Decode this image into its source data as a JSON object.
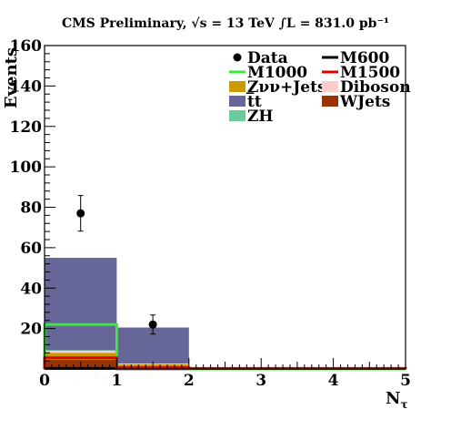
{
  "chart_data": {
    "type": "bar",
    "title": "CMS Preliminary, √s = 13 TeV ∫L = 831.0 pb⁻¹",
    "xlabel": "Nτ",
    "xlabel_main": "N",
    "xlabel_sub": "τ",
    "ylabel": "Events",
    "xlim": [
      0,
      5
    ],
    "ylim": [
      0,
      160
    ],
    "xticks": [
      "0",
      "1",
      "2",
      "3",
      "4",
      "5"
    ],
    "yticks": [
      "20",
      "40",
      "60",
      "80",
      "100",
      "120",
      "140",
      "160"
    ],
    "bins": [
      [
        0,
        1
      ],
      [
        1,
        2
      ],
      [
        2,
        3
      ],
      [
        3,
        4
      ],
      [
        4,
        5
      ]
    ],
    "stack": [
      {
        "name": "WJets",
        "color": "#993300",
        "values": [
          4.5,
          1.5,
          0,
          0,
          0
        ]
      },
      {
        "name": "Zνν+Jets",
        "color": "#cc9900",
        "values": [
          3.5,
          0.8,
          0,
          0,
          0
        ]
      },
      {
        "name": "Diboson",
        "color": "#ffcccc",
        "values": [
          1.0,
          0.3,
          0,
          0,
          0
        ]
      },
      {
        "name": "ZH",
        "color": "#66cc99",
        "values": [
          0.3,
          0.1,
          0,
          0,
          0
        ]
      },
      {
        "name": "t̅t",
        "color": "#666699",
        "values": [
          45.7,
          17.8,
          0,
          0,
          0
        ]
      }
    ],
    "signals": [
      {
        "name": "M600",
        "color": "#000000",
        "values": [
          0.3,
          0.1,
          0,
          0,
          0
        ]
      },
      {
        "name": "M1000",
        "color": "#33ee33",
        "values": [
          22,
          0.3,
          0,
          0,
          0
        ]
      },
      {
        "name": "M1500",
        "color": "#dd0000",
        "values": [
          5.5,
          0.5,
          0.3,
          0.3,
          0.3
        ]
      }
    ],
    "data_points": [
      {
        "x": 0.5,
        "y": 77,
        "err": 8.8
      },
      {
        "x": 1.5,
        "y": 22,
        "err": 4.7
      }
    ],
    "legend": [
      {
        "name": "Data",
        "kind": "marker",
        "color": "#000000"
      },
      {
        "name": "M600",
        "kind": "line",
        "color": "#000000"
      },
      {
        "name": "M1000",
        "kind": "line",
        "color": "#33ee33"
      },
      {
        "name": "M1500",
        "kind": "line",
        "color": "#dd0000"
      },
      {
        "name": "Zνν+Jets",
        "kind": "fill",
        "color": "#cc9900"
      },
      {
        "name": "Diboson",
        "kind": "fill",
        "color": "#ffcccc"
      },
      {
        "name": "t̅t",
        "kind": "fill",
        "color": "#666699"
      },
      {
        "name": "WJets",
        "kind": "fill",
        "color": "#993300"
      },
      {
        "name": "ZH",
        "kind": "fill",
        "color": "#66cc99"
      }
    ],
    "legend_position": "top-right",
    "grid": false
  }
}
